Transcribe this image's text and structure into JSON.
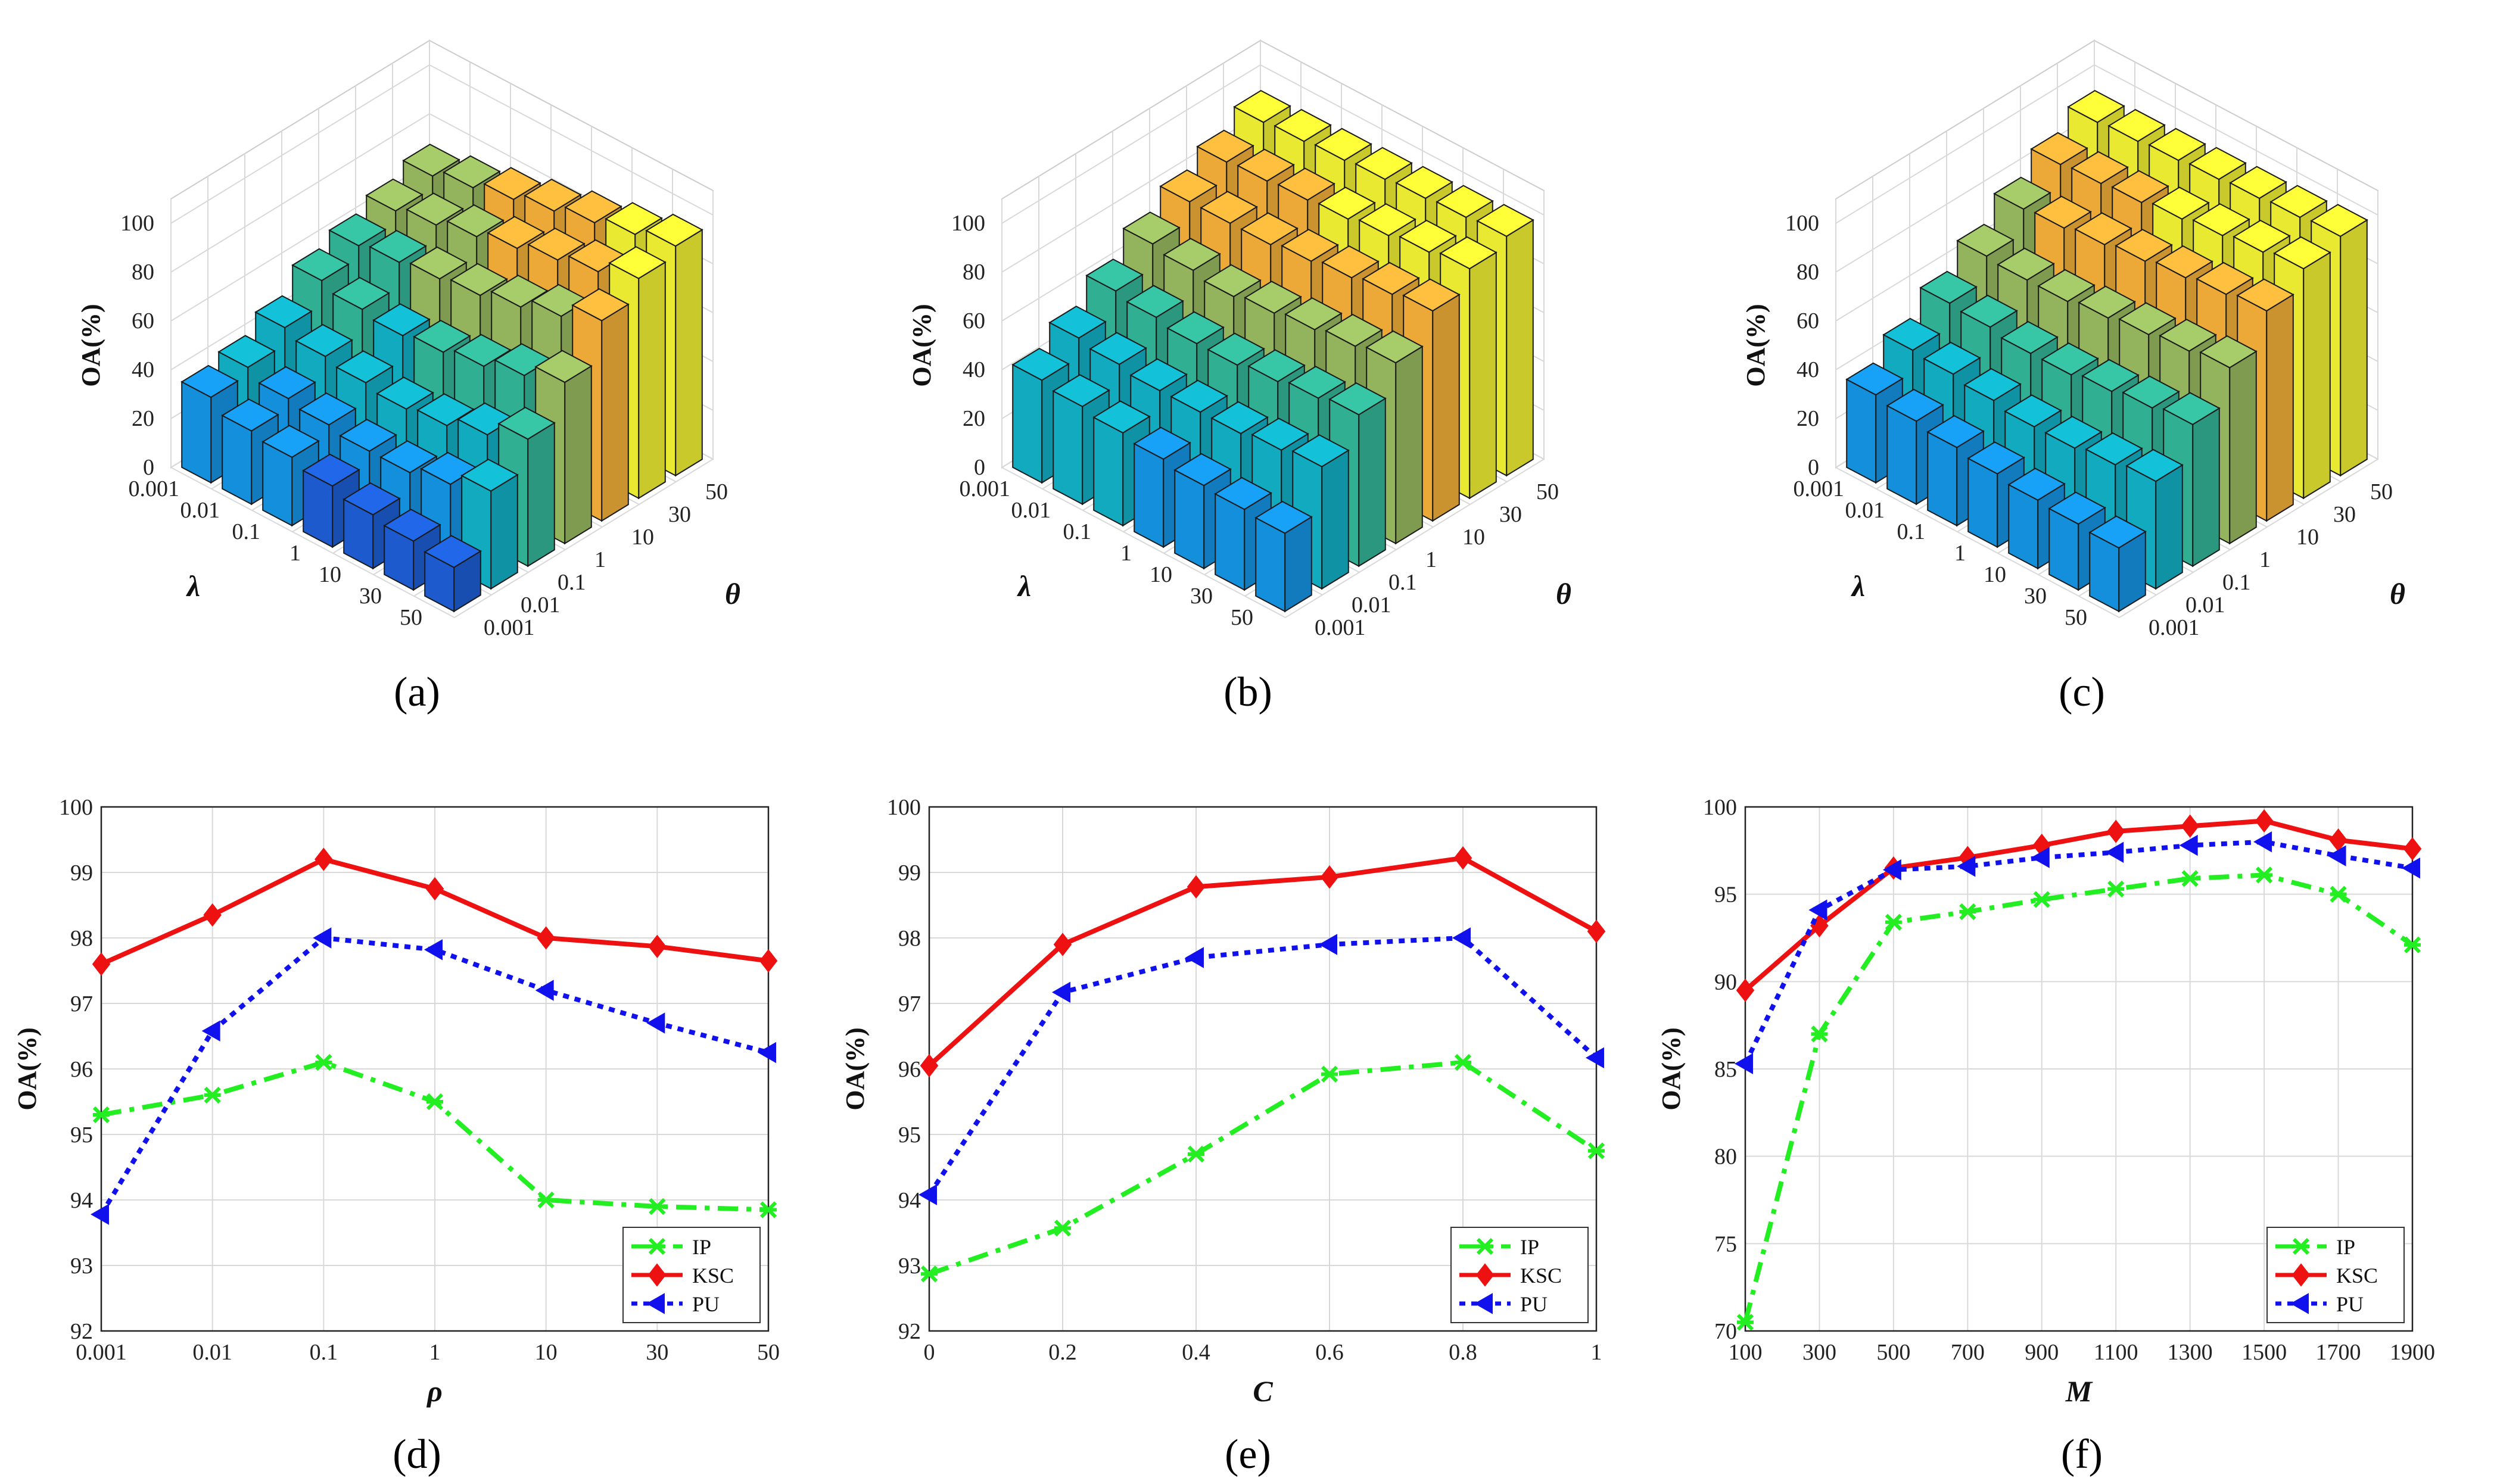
{
  "figure": {
    "panel_labels": [
      "(a)",
      "(b)",
      "(c)",
      "(d)",
      "(e)",
      "(f)"
    ]
  },
  "colors": {
    "IP": "#22ee22",
    "KSC": "#ee1111",
    "PU": "#1111ee",
    "bar_palette": [
      "#2b2c8a",
      "#1f5fd8",
      "#1596e6",
      "#12b3c8",
      "#34b89a",
      "#9bbd62",
      "#f8b23a",
      "#f5f535"
    ]
  },
  "chart_data": [
    {
      "id": "a",
      "type": "bar3d",
      "zlabel": "OA(%)",
      "xlabel": "λ",
      "ylabel": "θ",
      "lambda_ticks": [
        "0.001",
        "0.01",
        "0.1",
        "1",
        "10",
        "30",
        "50"
      ],
      "theta_ticks": [
        "0.001",
        "0.01",
        "0.1",
        "1",
        "10",
        "30",
        "50"
      ],
      "z_ticks": [
        "0",
        "20",
        "40",
        "60",
        "80",
        "100"
      ],
      "zlim": [
        0,
        100
      ],
      "values": [
        [
          35,
          38,
          45,
          55,
          60,
          65,
          70
        ],
        [
          30,
          34,
          42,
          52,
          62,
          68,
          74
        ],
        [
          28,
          32,
          40,
          50,
          64,
          72,
          78
        ],
        [
          25,
          30,
          38,
          52,
          66,
          76,
          82
        ],
        [
          22,
          30,
          40,
          55,
          70,
          80,
          86
        ],
        [
          20,
          34,
          45,
          60,
          75,
          84,
          90
        ],
        [
          18,
          40,
          52,
          66,
          82,
          90,
          94
        ]
      ]
    },
    {
      "id": "b",
      "type": "bar3d",
      "zlabel": "OA(%)",
      "xlabel": "λ",
      "ylabel": "θ",
      "lambda_ticks": [
        "0.001",
        "0.01",
        "0.1",
        "1",
        "10",
        "30",
        "50"
      ],
      "theta_ticks": [
        "0.001",
        "0.01",
        "0.1",
        "1",
        "10",
        "30",
        "50"
      ],
      "z_ticks": [
        "0",
        "20",
        "40",
        "60",
        "80",
        "100"
      ],
      "zlim": [
        0,
        100
      ],
      "values": [
        [
          42,
          50,
          60,
          70,
          78,
          85,
          92
        ],
        [
          40,
          48,
          58,
          68,
          78,
          86,
          93
        ],
        [
          38,
          46,
          56,
          66,
          78,
          87,
          94
        ],
        [
          36,
          46,
          56,
          68,
          80,
          88,
          95
        ],
        [
          34,
          46,
          58,
          70,
          82,
          90,
          96
        ],
        [
          33,
          48,
          60,
          72,
          84,
          92,
          97
        ],
        [
          32,
          50,
          62,
          74,
          86,
          94,
          98
        ]
      ]
    },
    {
      "id": "c",
      "type": "bar3d",
      "zlabel": "OA(%)",
      "xlabel": "λ",
      "ylabel": "θ",
      "lambda_ticks": [
        "0.001",
        "0.01",
        "0.1",
        "1",
        "10",
        "30",
        "50"
      ],
      "theta_ticks": [
        "0.001",
        "0.01",
        "0.1",
        "1",
        "10",
        "30",
        "50"
      ],
      "z_ticks": [
        "0",
        "20",
        "40",
        "60",
        "80",
        "100"
      ],
      "zlim": [
        0,
        100
      ],
      "values": [
        [
          36,
          45,
          55,
          65,
          75,
          84,
          92
        ],
        [
          34,
          44,
          54,
          64,
          76,
          85,
          93
        ],
        [
          32,
          42,
          52,
          64,
          78,
          86,
          94
        ],
        [
          30,
          40,
          52,
          66,
          80,
          88,
          95
        ],
        [
          28,
          40,
          54,
          68,
          82,
          90,
          96
        ],
        [
          27,
          42,
          56,
          70,
          84,
          92,
          97
        ],
        [
          26,
          44,
          58,
          72,
          86,
          94,
          98
        ]
      ]
    },
    {
      "id": "d",
      "type": "line",
      "xlabel": "ρ",
      "ylabel": "OA(%)",
      "categories": [
        "0.001",
        "0.01",
        "0.1",
        "1",
        "10",
        "30",
        "50"
      ],
      "ylim": [
        92,
        100
      ],
      "y_ticks": [
        "92",
        "93",
        "94",
        "95",
        "96",
        "97",
        "98",
        "99",
        "100"
      ],
      "series": [
        {
          "name": "IP",
          "values": [
            95.3,
            95.6,
            96.1,
            95.5,
            94.0,
            93.9,
            93.85
          ]
        },
        {
          "name": "KSC",
          "values": [
            97.6,
            98.35,
            99.2,
            98.75,
            98.0,
            97.87,
            97.65
          ]
        },
        {
          "name": "PU",
          "values": [
            93.78,
            96.58,
            98.0,
            97.82,
            97.2,
            96.7,
            96.25
          ]
        }
      ],
      "legend": "bottom-right"
    },
    {
      "id": "e",
      "type": "line",
      "xlabel": "C",
      "ylabel": "OA(%)",
      "categories": [
        "0",
        "0.2",
        "0.4",
        "0.6",
        "0.8",
        "1"
      ],
      "ylim": [
        92,
        100
      ],
      "y_ticks": [
        "92",
        "93",
        "94",
        "95",
        "96",
        "97",
        "98",
        "99",
        "100"
      ],
      "series": [
        {
          "name": "IP",
          "values": [
            92.87,
            93.57,
            94.7,
            95.92,
            96.1,
            94.75
          ]
        },
        {
          "name": "KSC",
          "values": [
            96.05,
            97.9,
            98.78,
            98.93,
            99.22,
            98.1
          ]
        },
        {
          "name": "PU",
          "values": [
            94.08,
            97.17,
            97.7,
            97.9,
            98.0,
            96.17
          ]
        }
      ],
      "legend": "bottom-right"
    },
    {
      "id": "f",
      "type": "line",
      "xlabel": "M",
      "ylabel": "OA(%)",
      "categories": [
        "100",
        "300",
        "500",
        "700",
        "900",
        "1100",
        "1300",
        "1500",
        "1700",
        "1900"
      ],
      "ylim": [
        70,
        100
      ],
      "y_ticks": [
        "70",
        "75",
        "80",
        "85",
        "90",
        "95",
        "100"
      ],
      "series": [
        {
          "name": "IP",
          "values": [
            70.5,
            87.0,
            93.4,
            94.0,
            94.7,
            95.3,
            95.9,
            96.1,
            95.0,
            92.1
          ]
        },
        {
          "name": "KSC",
          "values": [
            89.5,
            93.2,
            96.5,
            97.1,
            97.8,
            98.6,
            98.9,
            99.2,
            98.1,
            97.6
          ]
        },
        {
          "name": "PU",
          "values": [
            85.3,
            94.1,
            96.4,
            96.6,
            97.1,
            97.4,
            97.8,
            98.0,
            97.2,
            96.5
          ]
        }
      ],
      "legend": "bottom-right"
    }
  ]
}
